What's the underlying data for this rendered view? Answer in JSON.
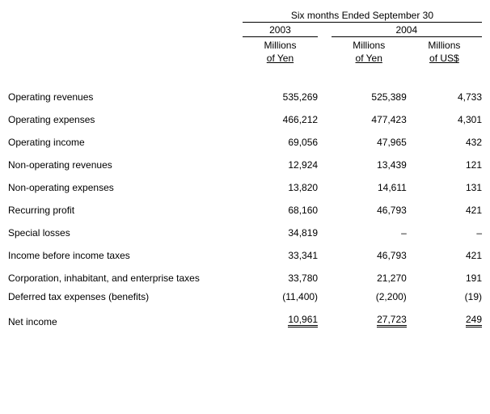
{
  "header": {
    "period_title": "Six months Ended September 30",
    "years": [
      "2003",
      "2004"
    ],
    "unit_yen_l1": "Millions",
    "unit_yen_l2": "of Yen",
    "unit_usd_l1": "Millions",
    "unit_usd_l2": "of US$"
  },
  "rows": {
    "op_rev": {
      "label": "Operating revenues",
      "y2003": "535,269",
      "y2004_yen": "525,389",
      "y2004_usd": "4,733"
    },
    "op_exp": {
      "label": "Operating expenses",
      "y2003": "466,212",
      "y2004_yen": "477,423",
      "y2004_usd": "4,301"
    },
    "op_inc": {
      "label": "Operating income",
      "y2003": "69,056",
      "y2004_yen": "47,965",
      "y2004_usd": "432"
    },
    "nop_rev": {
      "label": "Non-operating revenues",
      "y2003": "12,924",
      "y2004_yen": "13,439",
      "y2004_usd": "121"
    },
    "nop_exp": {
      "label": "Non-operating expenses",
      "y2003": "13,820",
      "y2004_yen": "14,611",
      "y2004_usd": "131"
    },
    "rec_prof": {
      "label": "Recurring profit",
      "y2003": "68,160",
      "y2004_yen": "46,793",
      "y2004_usd": "421"
    },
    "spec_loss": {
      "label": "Special losses",
      "y2003": "34,819",
      "y2004_yen": "–",
      "y2004_usd": "–"
    },
    "ibit": {
      "label": "Income before income taxes",
      "y2003": "33,341",
      "y2004_yen": "46,793",
      "y2004_usd": "421"
    },
    "corp_tax": {
      "label": "Corporation, inhabitant, and enterprise taxes",
      "y2003": "33,780",
      "y2004_yen": "21,270",
      "y2004_usd": "191"
    },
    "def_tax": {
      "label": "Deferred tax expenses (benefits)",
      "y2003": "(11,400)",
      "y2004_yen": "(2,200)",
      "y2004_usd": "(19)"
    },
    "net_inc": {
      "label": "Net income",
      "y2003": "10,961",
      "y2004_yen": "27,723",
      "y2004_usd": "249"
    }
  },
  "style": {
    "font_family": "Arial",
    "font_size_pt": 9,
    "text_color": "#000000",
    "background_color": "#ffffff",
    "rule_color": "#000000"
  }
}
